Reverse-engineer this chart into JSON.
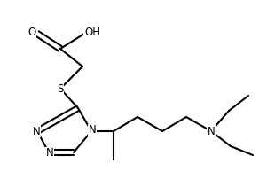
{
  "bg_color": "#ffffff",
  "line_color": "#000000",
  "line_width": 1.5,
  "font_size": 8.5,
  "xlim": [
    0,
    292
  ],
  "ylim": [
    0,
    211
  ]
}
